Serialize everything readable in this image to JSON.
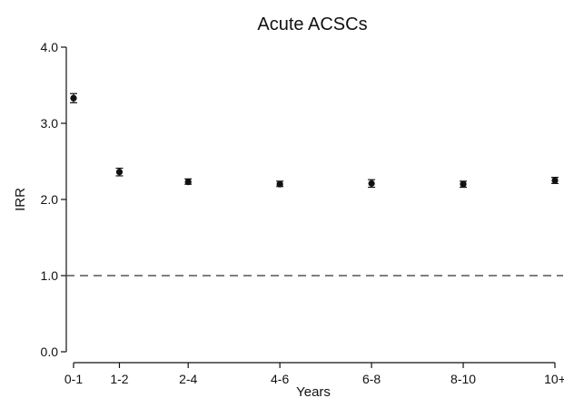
{
  "chart_data": {
    "type": "scatter",
    "title": "Acute ACSCs",
    "xlabel": "Years",
    "ylabel": "IRR",
    "categories": [
      "0-1",
      "1-2",
      "2-4",
      "4-6",
      "6-8",
      "8-10",
      "10+"
    ],
    "x_positions": [
      0.5,
      1.5,
      3,
      5,
      7,
      9,
      11
    ],
    "xlim": [
      0.5,
      11
    ],
    "ylim": [
      0,
      4
    ],
    "yticks": [
      0,
      1,
      2,
      3,
      4
    ],
    "ytick_labels": [
      "0.0",
      "1.0",
      "2.0",
      "3.0",
      "4.0"
    ],
    "series": [
      {
        "values": [
          3.33,
          2.36,
          2.23,
          2.2,
          2.21,
          2.2,
          2.25
        ],
        "ci_lower": [
          3.27,
          2.31,
          2.2,
          2.17,
          2.16,
          2.16,
          2.21
        ],
        "ci_upper": [
          3.39,
          2.41,
          2.27,
          2.24,
          2.26,
          2.24,
          2.29
        ]
      }
    ],
    "reference_line": {
      "y": 1.0,
      "style": "dashed"
    },
    "grid": false,
    "legend": "none",
    "colors": {
      "marker": "#111111",
      "axis": "#111111",
      "reference": "#555555"
    }
  }
}
